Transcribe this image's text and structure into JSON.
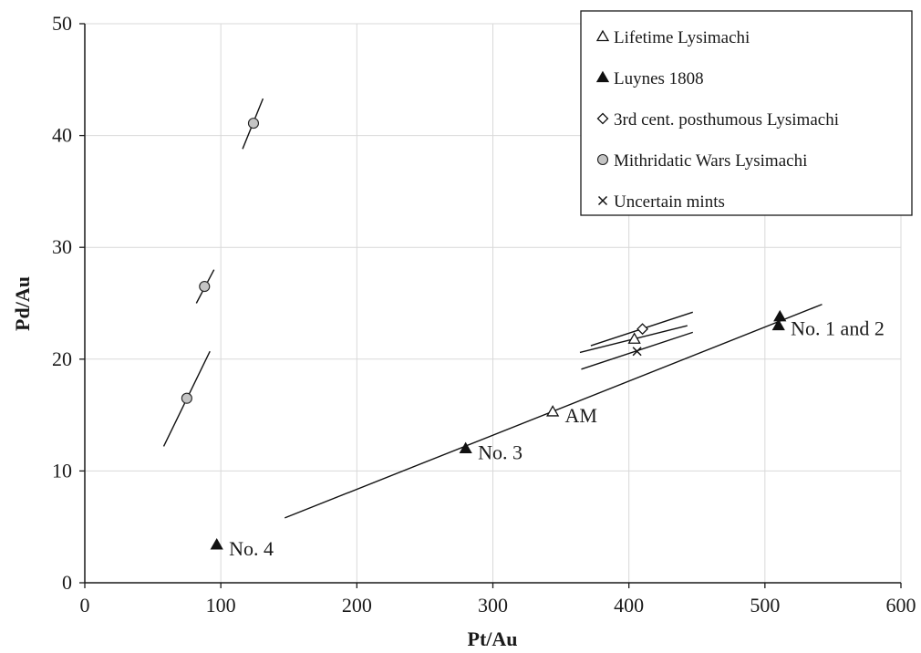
{
  "chart_data": {
    "type": "scatter",
    "title": "",
    "xlabel": "Pt/Au",
    "ylabel": "Pd/Au",
    "xlim": [
      0,
      600
    ],
    "ylim": [
      0,
      50
    ],
    "xticks": [
      0,
      100,
      200,
      300,
      400,
      500,
      600
    ],
    "yticks": [
      0,
      10,
      20,
      30,
      40,
      50
    ],
    "grid": true,
    "legend_position": "top-right",
    "series": [
      {
        "name": "Lifetime Lysimachi",
        "marker": "triangle-open",
        "points": [
          [
            344,
            15.3
          ],
          [
            404,
            21.8
          ]
        ]
      },
      {
        "name": "Luynes 1808",
        "marker": "triangle-filled",
        "points": [
          [
            97,
            3.4
          ],
          [
            280,
            12.0
          ],
          [
            510,
            23.0
          ],
          [
            511,
            23.8
          ]
        ]
      },
      {
        "name": "3rd cent. posthumous Lysimachi",
        "marker": "diamond-open",
        "points": [
          [
            410,
            22.7
          ]
        ]
      },
      {
        "name": "Mithridatic Wars Lysimachi",
        "marker": "circle-grey",
        "points": [
          [
            75,
            16.5
          ],
          [
            88,
            26.5
          ],
          [
            124,
            41.1
          ]
        ]
      },
      {
        "name": "Uncertain mints",
        "marker": "cross",
        "points": [
          [
            406,
            20.7
          ]
        ]
      }
    ],
    "lines": [
      {
        "x": [
          147,
          542
        ],
        "y": [
          5.8,
          24.9
        ]
      },
      {
        "x": [
          58,
          92
        ],
        "y": [
          12.2,
          20.7
        ]
      },
      {
        "x": [
          82,
          95
        ],
        "y": [
          25.0,
          28.0
        ]
      },
      {
        "x": [
          116,
          131
        ],
        "y": [
          38.8,
          43.3
        ]
      },
      {
        "x": [
          372,
          447
        ],
        "y": [
          21.2,
          24.2
        ]
      },
      {
        "x": [
          364,
          443
        ],
        "y": [
          20.6,
          23.0
        ]
      },
      {
        "x": [
          365,
          447
        ],
        "y": [
          19.1,
          22.4
        ]
      }
    ],
    "annotations": [
      {
        "text": "No. 1 and  2",
        "x": 519,
        "y": 22.8
      },
      {
        "text": "No. 3",
        "x": 289,
        "y": 11.7
      },
      {
        "text": "AM",
        "x": 353,
        "y": 15.0
      },
      {
        "text": "No. 4",
        "x": 106,
        "y": 3.1
      }
    ]
  },
  "colors": {
    "grid": "#d9d9d9",
    "axis": "#1a1a1a",
    "marker_fill_dark": "#111111",
    "marker_fill_grey": "#c4c4c4"
  }
}
